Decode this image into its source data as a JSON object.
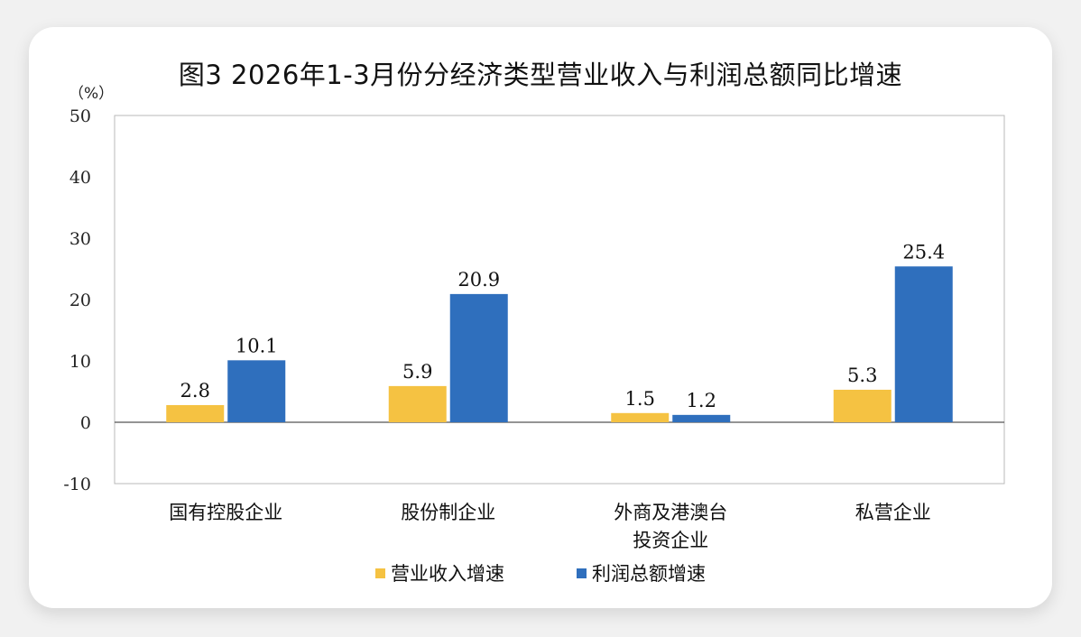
{
  "chart_data": {
    "type": "bar",
    "title": "图3 2026年1-3月份分经济类型营业收入与利润总额同比增速",
    "ylabel": "（%）",
    "ylim": [
      -10,
      50
    ],
    "yticks": [
      "50",
      "40",
      "30",
      "20",
      "10",
      "0",
      "-10"
    ],
    "ytick_values": [
      50,
      40,
      30,
      20,
      10,
      0,
      -10
    ],
    "categories": [
      [
        "国有控股企业"
      ],
      [
        "股份制企业"
      ],
      [
        "外商及港澳台",
        "投资企业"
      ],
      [
        "私营企业"
      ]
    ],
    "series": [
      {
        "name": "营业收入增速",
        "color": "#f5c242",
        "values": [
          2.8,
          5.9,
          1.5,
          5.3
        ],
        "labels": [
          "2.8",
          "5.9",
          "1.5",
          "5.3"
        ]
      },
      {
        "name": "利润总额增速",
        "color": "#2f6fbd",
        "values": [
          10.1,
          20.9,
          1.2,
          25.4
        ],
        "labels": [
          "10.1",
          "20.9",
          "1.2",
          "25.4"
        ]
      }
    ],
    "grid": false,
    "legend": "bottom"
  }
}
